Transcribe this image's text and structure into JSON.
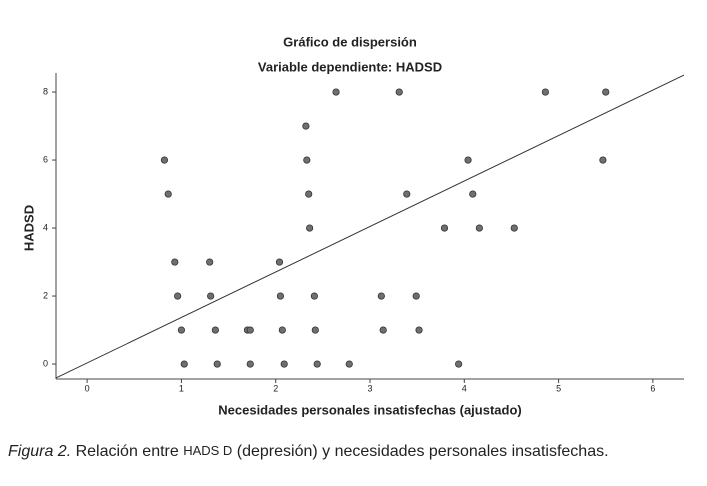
{
  "chart_data": {
    "type": "scatter",
    "title": "Gráfico de dispersión",
    "subtitle": "Variable dependiente: HADSD",
    "x_label": "Necesidades personales insatisfechas (ajustado)",
    "y_label": "HADSD",
    "x": [
      0.82,
      0.86,
      0.93,
      0.96,
      1.0,
      1.03,
      1.3,
      1.31,
      1.36,
      1.38,
      1.7,
      1.73,
      1.73,
      2.04,
      2.05,
      2.07,
      2.09,
      2.32,
      2.33,
      2.35,
      2.36,
      2.41,
      2.42,
      2.44,
      2.64,
      2.78,
      3.12,
      3.14,
      3.31,
      3.39,
      3.49,
      3.52,
      3.79,
      3.94,
      4.04,
      4.09,
      4.16,
      4.53,
      4.86,
      5.47,
      5.5
    ],
    "values": [
      6,
      5,
      3,
      2,
      1,
      0,
      3,
      2,
      1,
      0,
      1,
      1,
      0,
      3,
      2,
      1,
      0,
      7,
      6,
      5,
      4,
      2,
      1,
      0,
      8,
      0,
      2,
      1,
      8,
      5,
      2,
      1,
      4,
      0,
      6,
      5,
      4,
      4,
      8,
      6,
      8
    ],
    "color": "#6f6f6f",
    "fit_line": {
      "x": [
        -0.33,
        6.33
      ],
      "y": [
        -0.41,
        8.5
      ],
      "color": "#333333"
    },
    "xlim": [
      -0.33,
      6.33
    ],
    "xticks": [
      0,
      1,
      2,
      3,
      4,
      5,
      6
    ],
    "ylim": [
      -0.44,
      8.56
    ],
    "yticks": [
      0,
      2,
      4,
      6,
      8
    ]
  },
  "caption": {
    "label": "Figura 2.",
    "parts": [
      " Relación entre ",
      "HADS D",
      " (depresión) y necesidades personales insatisfechas."
    ]
  }
}
